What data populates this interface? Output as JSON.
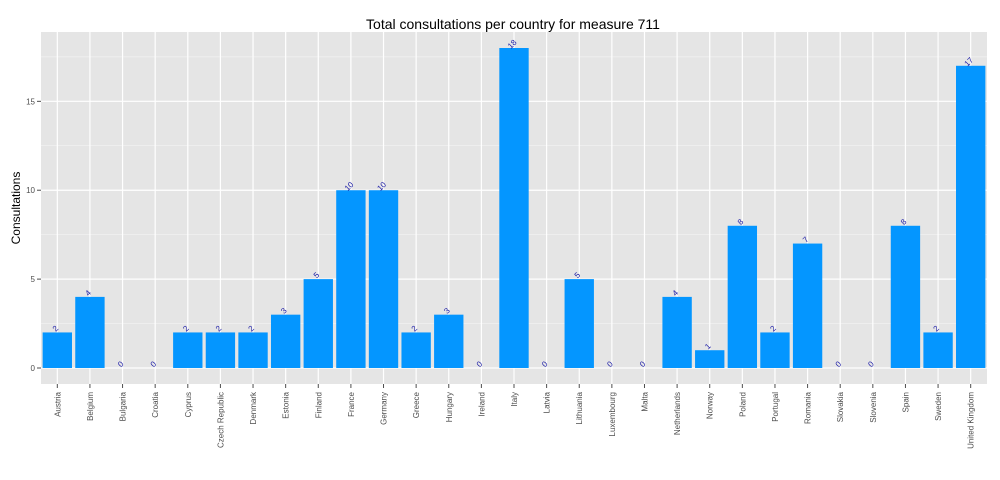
{
  "chart_data": {
    "type": "bar",
    "title": "Total consultations per country for measure 711",
    "xlabel": "",
    "ylabel": "Consultations",
    "ylim": [
      -0.9,
      18.9
    ],
    "yticks": [
      0,
      5,
      10,
      15
    ],
    "grid": true,
    "bar_color": "#0496ff",
    "panel_background": "#e5e5e5",
    "grid_color": "#ffffff",
    "label_color": "#1a1aa6",
    "categories": [
      "Austria",
      "Belgium",
      "Bulgaria",
      "Croatia",
      "Cyprus",
      "Czech Republic",
      "Denmark",
      "Estonia",
      "Finland",
      "France",
      "Germany",
      "Greece",
      "Hungary",
      "Ireland",
      "Italy",
      "Latvia",
      "Lithuania",
      "Luxembourg",
      "Malta",
      "Netherlands",
      "Norway",
      "Poland",
      "Portugal",
      "Romania",
      "Slovakia",
      "Slovenia",
      "Spain",
      "Sweden",
      "United Kingdom"
    ],
    "values": [
      2,
      4,
      0,
      0,
      2,
      2,
      2,
      3,
      5,
      10,
      10,
      2,
      3,
      0,
      18,
      0,
      5,
      0,
      0,
      4,
      1,
      8,
      2,
      7,
      0,
      0,
      8,
      2,
      17
    ]
  }
}
